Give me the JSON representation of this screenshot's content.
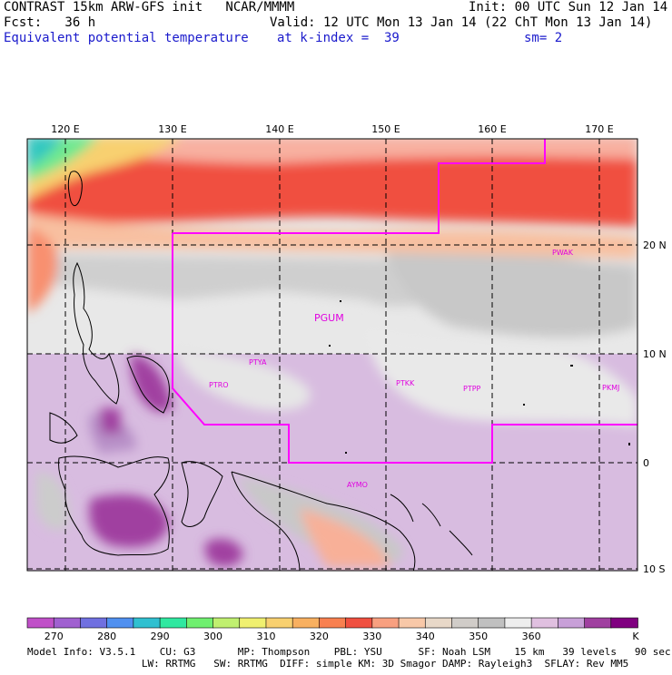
{
  "header": {
    "line1_left": "CONTRAST 15km ARW-GFS init   NCAR/MMMM",
    "line1_right": "Init: 00 UTC Sun 12 Jan 14",
    "line2_left": "Fcst:   36 h",
    "line2_right": "Valid: 12 UTC Mon 13 Jan 14 (22 ChT Mon 13 Jan 14)",
    "line3_left": "Equivalent potential temperature",
    "line3_mid": "at k-index =  39",
    "line3_right": "sm= 2"
  },
  "map": {
    "lon_labels": [
      "120 E",
      "130 E",
      "140 E",
      "150 E",
      "160 E",
      "170 E"
    ],
    "lat_labels": [
      "20 N",
      "10 N",
      "0",
      "10 S"
    ],
    "stations": [
      "PGUM",
      "PTYA",
      "PTRO",
      "PTKK",
      "PTPP",
      "PKMJ",
      "PWAK",
      "AYMO"
    ]
  },
  "colorbar": {
    "tick_labels": [
      "270",
      "280",
      "290",
      "300",
      "310",
      "320",
      "330",
      "340",
      "350",
      "360"
    ],
    "unit": "K",
    "colors": [
      "#c050c8",
      "#a060d0",
      "#7070e0",
      "#5090f0",
      "#30c0d0",
      "#30e8a0",
      "#70f070",
      "#c0f070",
      "#f0f070",
      "#f8d070",
      "#f8b060",
      "#f88050",
      "#f05040",
      "#f8a080",
      "#f8c8a8",
      "#e8d8c8",
      "#d0ccc8",
      "#c0c0c0",
      "#eeeeee",
      "#e0c0e0",
      "#c8a0d8",
      "#a040a0",
      "#800080"
    ]
  },
  "footer": {
    "line1": "Model Info: V3.5.1    CU: G3       MP: Thompson    PBL: YSU      SF: Noah LSM    15 km   39 levels   90 sec",
    "line2": "                   LW: RRTMG   SW: RRTMG  DIFF: simple KM: 3D Smagor DAMP: Rayleigh3  SFLAY: Rev MM5"
  }
}
